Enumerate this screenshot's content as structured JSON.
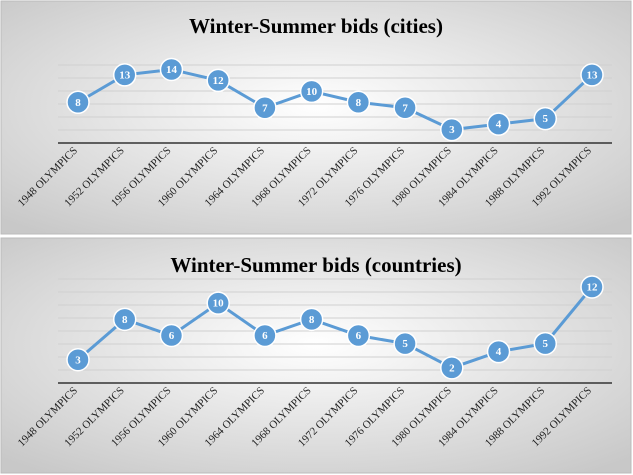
{
  "chart_data": [
    {
      "type": "line",
      "title": "Winter-Summer bids (cities)",
      "categories": [
        "1948 OLYMPICS",
        "1952 OLYMPICS",
        "1956 OLYMPICS",
        "1960 OLYMPICS",
        "1964 OLYMPICS",
        "1968 OLYMPICS",
        "1972 OLYMPICS",
        "1976 OLYMPICS",
        "1980 OLYMPICS",
        "1984 OLYMPICS",
        "1988 OLYMPICS",
        "1992 OLYMPICS"
      ],
      "values": [
        8,
        13,
        14,
        12,
        7,
        10,
        8,
        7,
        3,
        4,
        5,
        13
      ],
      "color": "#5b9bd5",
      "ylim": [
        0,
        15
      ]
    },
    {
      "type": "line",
      "title": "Winter-Summer bids (countries)",
      "categories": [
        "1948 OLYMPICS",
        "1952 OLYMPICS",
        "1956 OLYMPICS",
        "1960 OLYMPICS",
        "1964 OLYMPICS",
        "1968 OLYMPICS",
        "1972 OLYMPICS",
        "1976 OLYMPICS",
        "1980 OLYMPICS",
        "1984 OLYMPICS",
        "1988 OLYMPICS",
        "1992 OLYMPICS"
      ],
      "values": [
        3,
        8,
        6,
        10,
        6,
        8,
        6,
        5,
        2,
        4,
        5,
        12
      ],
      "color": "#5b9bd5",
      "ylim": [
        0,
        12
      ]
    }
  ]
}
